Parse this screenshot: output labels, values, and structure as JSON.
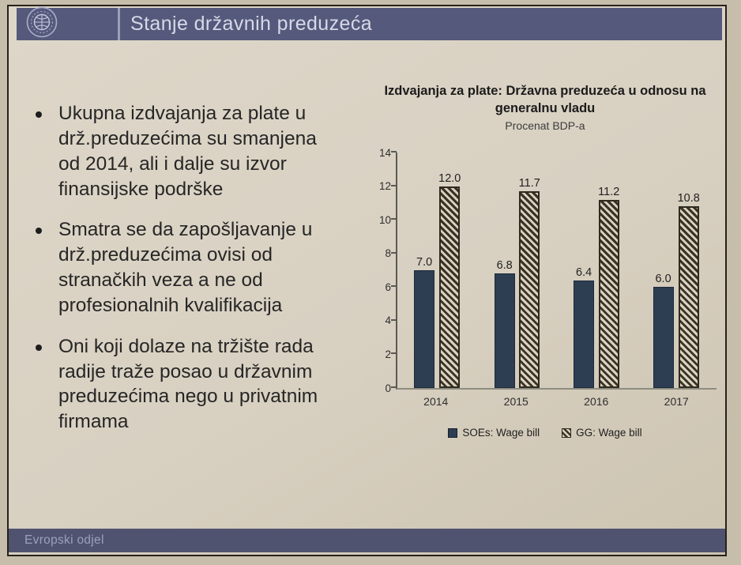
{
  "slide": {
    "header": {
      "title": "Stanje državnih preduzeća",
      "logo": "imf-seal"
    },
    "bullets": [
      "Ukupna izdvajanja za plate u drž.preduzećima su smanjena od 2014, ali i dalje su izvor finansijske podrške",
      "Smatra se da zapošljavanje u drž.preduzećima ovisi od stranačkih veza a ne od profesionalnih kvalifikacija",
      "Oni koji dolaze na tržište rada radije traže posao u državnim preduzećima nego u privatnim firmama"
    ],
    "footer": {
      "label": "Evropski odjel"
    }
  },
  "chart_data": {
    "type": "bar",
    "title": "Izdvajanja za plate: Državna preduzeća u odnosu na generalnu vladu",
    "subtitle": "Procenat BDP-a",
    "categories": [
      "2014",
      "2015",
      "2016",
      "2017"
    ],
    "series": [
      {
        "name": "SOEs: Wage bill",
        "style": "solid",
        "color": "#2d3e53",
        "values": [
          7.0,
          6.8,
          6.4,
          6.0
        ]
      },
      {
        "name": "GG: Wage bill",
        "style": "hatched",
        "color": "#3a3223",
        "values": [
          12.0,
          11.7,
          11.2,
          10.8
        ]
      }
    ],
    "ylim": [
      0,
      14
    ],
    "yticks": [
      0,
      2,
      4,
      6,
      8,
      10,
      12,
      14
    ],
    "grid": false,
    "legend_position": "bottom",
    "value_labels": true
  },
  "colors": {
    "header_bar": "#55597b",
    "footer_bar": "#50536f",
    "slide_bg": "#d8d0c1",
    "photo_margin": "#c6bdab",
    "frame": "#27211a",
    "title_text": "#d7d9e8",
    "body_text": "#262626",
    "bar_solid": "#2d3e53",
    "hatch_stroke": "#3a3223",
    "footer_text": "#9aa0bd"
  }
}
